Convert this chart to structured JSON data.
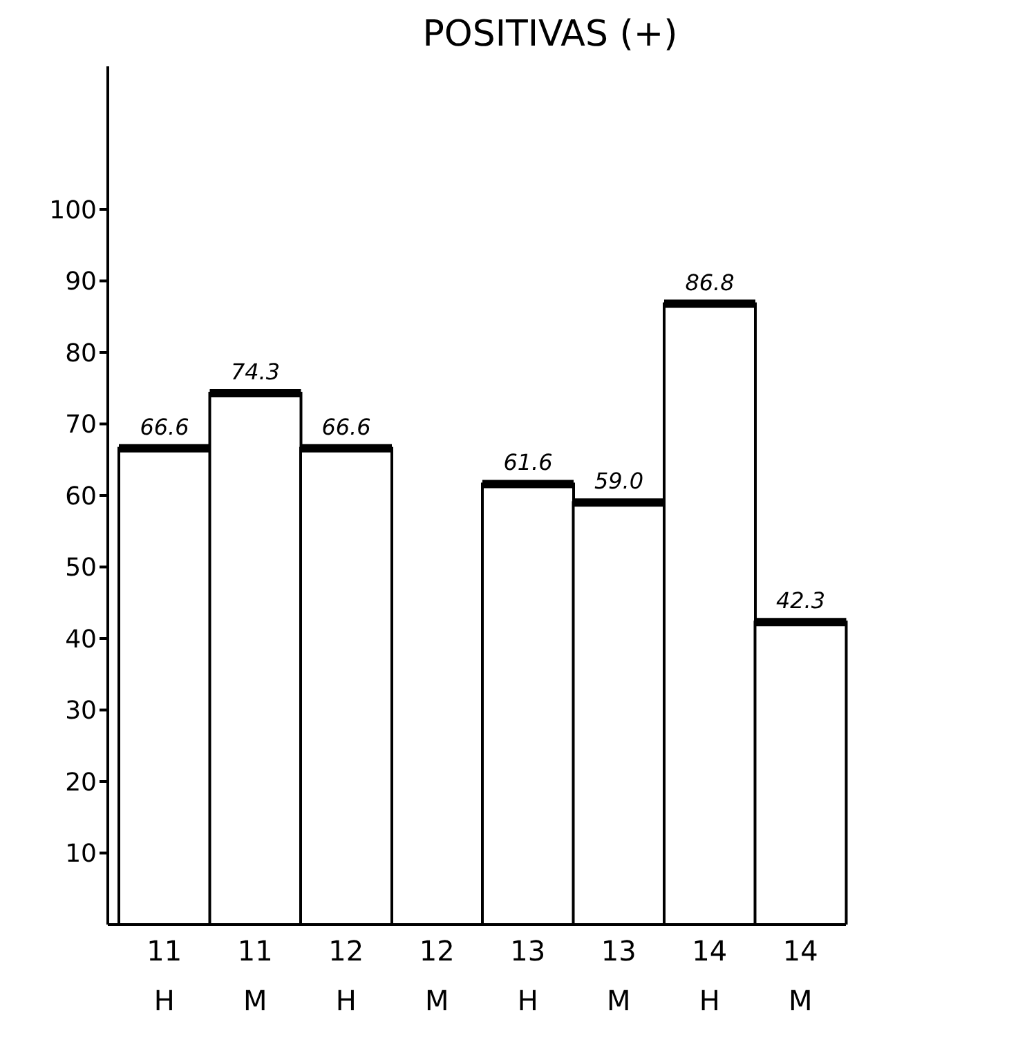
{
  "chart_data": {
    "type": "bar",
    "title": "POSITIVAS (+)",
    "categories": [
      "11\nH",
      "11\nM",
      "12\nH",
      "12\nM",
      "13\nH",
      "13\nM",
      "14\nH",
      "14\nM"
    ],
    "values": [
      66.6,
      74.3,
      66.6,
      null,
      61.6,
      59.0,
      86.8,
      42.3
    ],
    "value_labels": [
      "66.6",
      "74.3",
      "66.6",
      null,
      "61.6",
      "59.0",
      "86.8",
      "42.3"
    ],
    "color": "#ffffff",
    "ylim": [
      0,
      120
    ],
    "yticks": [
      10,
      20,
      30,
      40,
      50,
      60,
      70,
      80,
      90,
      100
    ],
    "grid": false,
    "legend": false
  }
}
